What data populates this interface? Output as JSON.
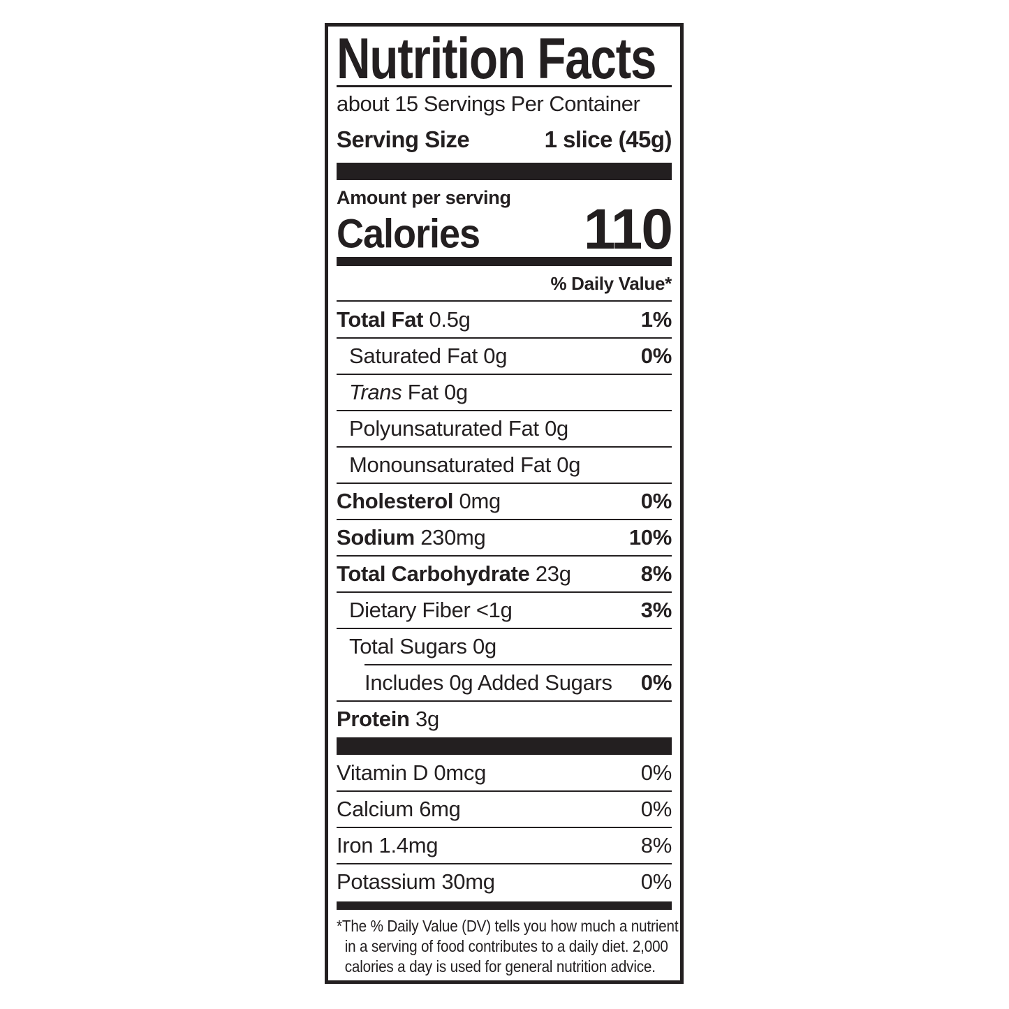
{
  "colors": {
    "ink": "#231f20",
    "background": "#ffffff"
  },
  "label": {
    "title": "Nutrition Facts",
    "servings_per_container": "about 15 Servings Per Container",
    "serving_size": {
      "label": "Serving Size",
      "value": "1 slice (45g)"
    },
    "amount_per_serving": "Amount per serving",
    "calories": {
      "label": "Calories",
      "value": "110"
    },
    "daily_value_header": "% Daily Value*",
    "nutrients": [
      {
        "name": "Total Fat",
        "amount": "0.5g",
        "dv": "1%",
        "bold": true,
        "indent": 0
      },
      {
        "name": "Saturated Fat",
        "amount": "0g",
        "dv": "0%",
        "bold": false,
        "indent": 1
      },
      {
        "name": "Trans Fat",
        "amount": "0g",
        "dv": "",
        "bold": false,
        "indent": 1,
        "italic_word": "Trans"
      },
      {
        "name": "Polyunsaturated Fat",
        "amount": "0g",
        "dv": "",
        "bold": false,
        "indent": 1
      },
      {
        "name": "Monounsaturated Fat",
        "amount": "0g",
        "dv": "",
        "bold": false,
        "indent": 1
      },
      {
        "name": "Cholesterol",
        "amount": "0mg",
        "dv": "0%",
        "bold": true,
        "indent": 0
      },
      {
        "name": "Sodium",
        "amount": "230mg",
        "dv": "10%",
        "bold": true,
        "indent": 0
      },
      {
        "name": "Total Carbohydrate",
        "amount": "23g",
        "dv": "8%",
        "bold": true,
        "indent": 0
      },
      {
        "name": "Dietary Fiber",
        "amount": "<1g",
        "dv": "3%",
        "bold": false,
        "indent": 1
      },
      {
        "name": "Total Sugars",
        "amount": "0g",
        "dv": "",
        "bold": false,
        "indent": 1
      },
      {
        "name": "Includes 0g Added Sugars",
        "amount": "",
        "dv": "0%",
        "bold": false,
        "indent": 2,
        "separator_indented": true
      },
      {
        "name": "Protein",
        "amount": "3g",
        "dv": "",
        "bold": true,
        "indent": 0
      }
    ],
    "vitamins": [
      {
        "name": "Vitamin D",
        "amount": "0mcg",
        "dv": "0%"
      },
      {
        "name": "Calcium",
        "amount": "6mg",
        "dv": "0%"
      },
      {
        "name": "Iron",
        "amount": "1.4mg",
        "dv": "8%"
      },
      {
        "name": "Potassium",
        "amount": "30mg",
        "dv": "0%"
      }
    ],
    "footnote_lines": [
      "*The % Daily Value (DV) tells you how much a nutrient",
      "in a serving of food contributes to a daily diet. 2,000",
      "calories a day is used for general nutrition advice."
    ]
  }
}
